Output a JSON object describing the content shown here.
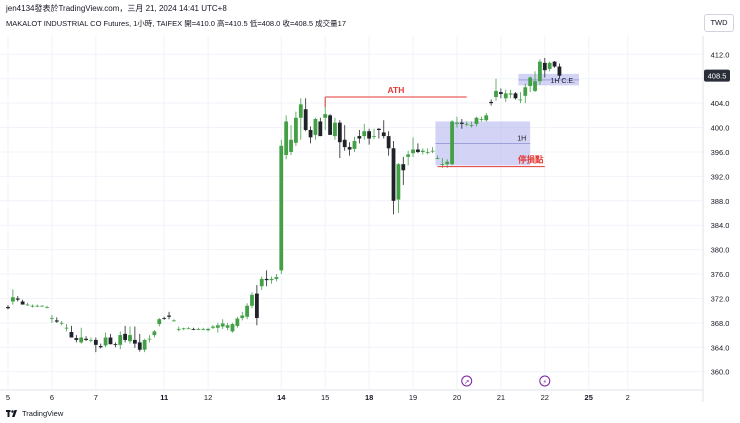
{
  "header": {
    "published_by": "jen4134發表於TradingView.com，三月 21, 2024 14:41 UTC+8",
    "symbol_line": "MAKALOT INDUSTRIAL CO Futures, 1小時, TAIFEX  開=410.0  高=410.5  低=408.0  收=408.5  成交量17"
  },
  "currency_button": "TWD",
  "footer": {
    "brand": "TradingView"
  },
  "colors": {
    "up": "#43a047",
    "down": "#1f2228",
    "fvg": "#b5b7ef",
    "red_line": "#e53935",
    "ath_line": "#e53935",
    "price_tag_bg": "#2a2e39"
  },
  "chart_data": {
    "type": "candlestick",
    "title": "",
    "ylim": [
      357,
      415
    ],
    "yticks": [
      360.0,
      364.0,
      368.0,
      372.0,
      376.0,
      380.0,
      384.0,
      388.0,
      392.0,
      396.0,
      400.0,
      404.0,
      408.0,
      412.0
    ],
    "xticks": [
      {
        "label": "5",
        "i": 0
      },
      {
        "label": "6",
        "i": 9
      },
      {
        "label": "7",
        "i": 18
      },
      {
        "label": "11",
        "i": 32
      },
      {
        "label": "12",
        "i": 41
      },
      {
        "label": "14",
        "i": 56
      },
      {
        "label": "15",
        "i": 65
      },
      {
        "label": "18",
        "i": 74
      },
      {
        "label": "19",
        "i": 83
      },
      {
        "label": "20",
        "i": 92
      },
      {
        "label": "21",
        "i": 101
      },
      {
        "label": "22",
        "i": 110
      },
      {
        "label": "25",
        "i": 119
      },
      {
        "label": "2",
        "i": 127
      }
    ],
    "last_price": "408.5",
    "candles": [
      [
        370.6,
        370.9,
        370.2,
        370.4
      ],
      [
        371.5,
        373.5,
        371.0,
        372.2
      ],
      [
        372.0,
        372.4,
        371.5,
        371.8
      ],
      [
        371.5,
        371.8,
        371.0,
        371.0
      ],
      [
        371.0,
        371.3,
        370.8,
        371.0
      ],
      [
        370.8,
        371.0,
        370.5,
        370.8
      ],
      [
        370.8,
        371.0,
        370.6,
        370.8
      ],
      [
        370.8,
        370.9,
        370.7,
        370.8
      ],
      [
        370.6,
        370.8,
        370.4,
        370.6
      ],
      [
        368.8,
        369.3,
        368.0,
        368.8
      ],
      [
        368.4,
        368.9,
        368.0,
        368.2
      ],
      [
        368.0,
        368.3,
        367.6,
        368.0
      ],
      [
        367.2,
        367.8,
        366.6,
        367.2
      ],
      [
        366.5,
        367.5,
        365.6,
        365.6
      ],
      [
        365.5,
        366.0,
        364.8,
        365.2
      ],
      [
        364.8,
        367.2,
        364.6,
        365.6
      ],
      [
        365.4,
        365.8,
        365.0,
        365.2
      ],
      [
        365.2,
        365.6,
        364.8,
        365.2
      ],
      [
        365.2,
        365.6,
        363.2,
        364.4
      ],
      [
        364.2,
        364.6,
        363.8,
        364.0
      ],
      [
        364.3,
        366.4,
        364.0,
        365.6
      ],
      [
        365.6,
        366.2,
        364.5,
        364.5
      ],
      [
        364.5,
        364.8,
        364.0,
        364.4
      ],
      [
        364.4,
        366.6,
        363.7,
        366.0
      ],
      [
        366.2,
        367.5,
        364.8,
        365.2
      ],
      [
        365.0,
        367.4,
        364.6,
        366.0
      ],
      [
        365.2,
        367.4,
        363.9,
        364.6
      ],
      [
        364.8,
        366.2,
        363.3,
        363.6
      ],
      [
        363.6,
        365.4,
        363.2,
        365.2
      ],
      [
        365.4,
        366.0,
        364.8,
        365.4
      ],
      [
        366.0,
        366.8,
        365.6,
        366.6
      ],
      [
        367.8,
        368.8,
        367.4,
        368.6
      ],
      [
        368.8,
        369.0,
        368.5,
        368.7
      ],
      [
        369.2,
        369.8,
        368.6,
        369.0
      ],
      [
        368.4,
        368.6,
        368.2,
        368.4
      ],
      [
        367.0,
        367.4,
        366.6,
        367.0
      ],
      [
        367.0,
        367.2,
        366.8,
        367.1
      ],
      [
        367.1,
        367.3,
        367.0,
        367.1
      ],
      [
        367.0,
        367.2,
        366.8,
        366.9
      ],
      [
        367.0,
        367.2,
        366.8,
        367.0
      ],
      [
        367.0,
        367.2,
        366.8,
        367.0
      ],
      [
        366.8,
        367.2,
        366.6,
        367.0
      ],
      [
        367.2,
        367.6,
        367.0,
        367.4
      ],
      [
        367.2,
        368.0,
        366.4,
        367.6
      ],
      [
        367.4,
        368.6,
        367.0,
        367.9
      ],
      [
        367.2,
        368.0,
        366.8,
        367.6
      ],
      [
        366.6,
        368.0,
        366.4,
        367.8
      ],
      [
        367.5,
        369.0,
        367.2,
        368.7
      ],
      [
        368.8,
        369.8,
        368.4,
        369.2
      ],
      [
        369.0,
        371.2,
        368.6,
        370.8
      ],
      [
        370.8,
        373.0,
        370.4,
        372.6
      ],
      [
        372.8,
        374.2,
        367.6,
        368.8
      ],
      [
        374.0,
        375.6,
        373.4,
        375.2
      ],
      [
        375.2,
        376.6,
        374.0,
        375.0
      ],
      [
        375.0,
        375.6,
        374.4,
        375.2
      ],
      [
        375.2,
        376.0,
        374.8,
        375.5
      ],
      [
        376.6,
        398.0,
        376.0,
        397.0
      ],
      [
        395.5,
        402.0,
        394.8,
        401.0
      ],
      [
        396.0,
        400.4,
        395.5,
        398.0
      ],
      [
        397.5,
        402.6,
        397.0,
        401.6
      ],
      [
        401.6,
        404.8,
        398.0,
        403.8
      ],
      [
        403.0,
        404.8,
        399.4,
        399.6
      ],
      [
        399.6,
        400.2,
        397.4,
        398.4
      ],
      [
        398.8,
        401.6,
        398.0,
        401.4
      ],
      [
        401.0,
        401.6,
        398.6,
        398.6
      ],
      [
        401.6,
        404.6,
        399.6,
        402.2
      ],
      [
        402.0,
        402.2,
        398.8,
        398.8
      ],
      [
        398.6,
        401.6,
        398.0,
        400.8
      ],
      [
        400.8,
        401.2,
        395.0,
        397.6
      ],
      [
        398.0,
        400.4,
        396.2,
        396.8
      ],
      [
        396.8,
        397.6,
        395.4,
        396.4
      ],
      [
        396.5,
        398.5,
        396.0,
        397.8
      ],
      [
        398.6,
        399.6,
        397.4,
        398.2
      ],
      [
        398.6,
        400.6,
        398.0,
        399.4
      ],
      [
        399.4,
        399.8,
        397.2,
        398.2
      ],
      [
        398.6,
        399.8,
        398.1,
        398.6
      ],
      [
        399.8,
        399.9,
        398.2,
        399.6
      ],
      [
        399.2,
        401.2,
        398.2,
        398.6
      ],
      [
        398.6,
        399.4,
        395.4,
        396.6
      ],
      [
        396.6,
        397.8,
        385.8,
        388.0
      ],
      [
        388.2,
        394.2,
        386.0,
        394.0
      ],
      [
        394.0,
        395.2,
        390.6,
        393.0
      ],
      [
        395.2,
        396.2,
        393.8,
        395.6
      ],
      [
        395.8,
        398.4,
        395.2,
        396.4
      ],
      [
        396.4,
        397.4,
        395.8,
        396.0
      ],
      [
        396.0,
        396.6,
        395.6,
        396.2
      ],
      [
        396.0,
        396.6,
        395.6,
        396.0
      ],
      [
        396.2,
        396.8,
        395.8,
        396.2
      ],
      [
        395.0,
        395.4,
        394.8,
        395.0
      ],
      [
        394.0,
        395.0,
        393.4,
        394.0
      ],
      [
        394.0,
        394.8,
        393.4,
        394.4
      ],
      [
        394.0,
        401.2,
        393.8,
        401.0
      ],
      [
        400.6,
        401.8,
        400.0,
        400.8
      ],
      [
        400.8,
        401.4,
        399.8,
        400.6
      ],
      [
        400.6,
        401.0,
        400.2,
        400.6
      ],
      [
        400.4,
        401.0,
        400.0,
        400.4
      ],
      [
        400.6,
        401.8,
        400.2,
        401.6
      ],
      [
        401.4,
        401.8,
        401.0,
        401.4
      ],
      [
        401.2,
        402.4,
        401.0,
        402.0
      ],
      [
        404.2,
        404.6,
        403.6,
        404.0
      ],
      [
        405.0,
        408.0,
        404.4,
        406.0
      ],
      [
        405.8,
        406.4,
        404.8,
        405.5
      ],
      [
        404.8,
        406.2,
        404.2,
        405.6
      ],
      [
        405.4,
        406.2,
        404.8,
        405.6
      ],
      [
        405.6,
        405.8,
        404.6,
        404.8
      ],
      [
        404.6,
        405.8,
        404.0,
        404.6
      ],
      [
        405.2,
        407.2,
        404.0,
        406.6
      ],
      [
        406.8,
        408.4,
        405.8,
        408.2
      ],
      [
        406.0,
        409.2,
        405.8,
        407.6
      ],
      [
        407.6,
        411.2,
        407.0,
        410.8
      ],
      [
        410.6,
        411.4,
        408.2,
        409.4
      ],
      [
        409.6,
        410.8,
        409.2,
        410.6
      ],
      [
        410.8,
        410.9,
        409.8,
        410.0
      ],
      [
        410.0,
        410.5,
        408.0,
        408.5
      ]
    ],
    "annotations": {
      "ath": {
        "label": "ATH",
        "price": 405.0,
        "from_i": 65,
        "to_i": 94
      },
      "stop": {
        "label": "停損點",
        "price": 393.6,
        "from_i": 88,
        "to_i": 110
      },
      "fvg_1h": {
        "label": "1H",
        "top": 401.0,
        "bottom": 393.8,
        "from_i": 88,
        "to_i": 107,
        "mid": 397.4
      },
      "fvg_1h_ce": {
        "label": "1H C.E.",
        "top": 408.8,
        "bottom": 406.9,
        "from_i": 105,
        "to_i": 117,
        "mid": 407.8
      }
    },
    "event_markers": [
      {
        "i": 94,
        "symbol": "↗"
      },
      {
        "i": 110,
        "symbol": "⚡"
      }
    ]
  }
}
